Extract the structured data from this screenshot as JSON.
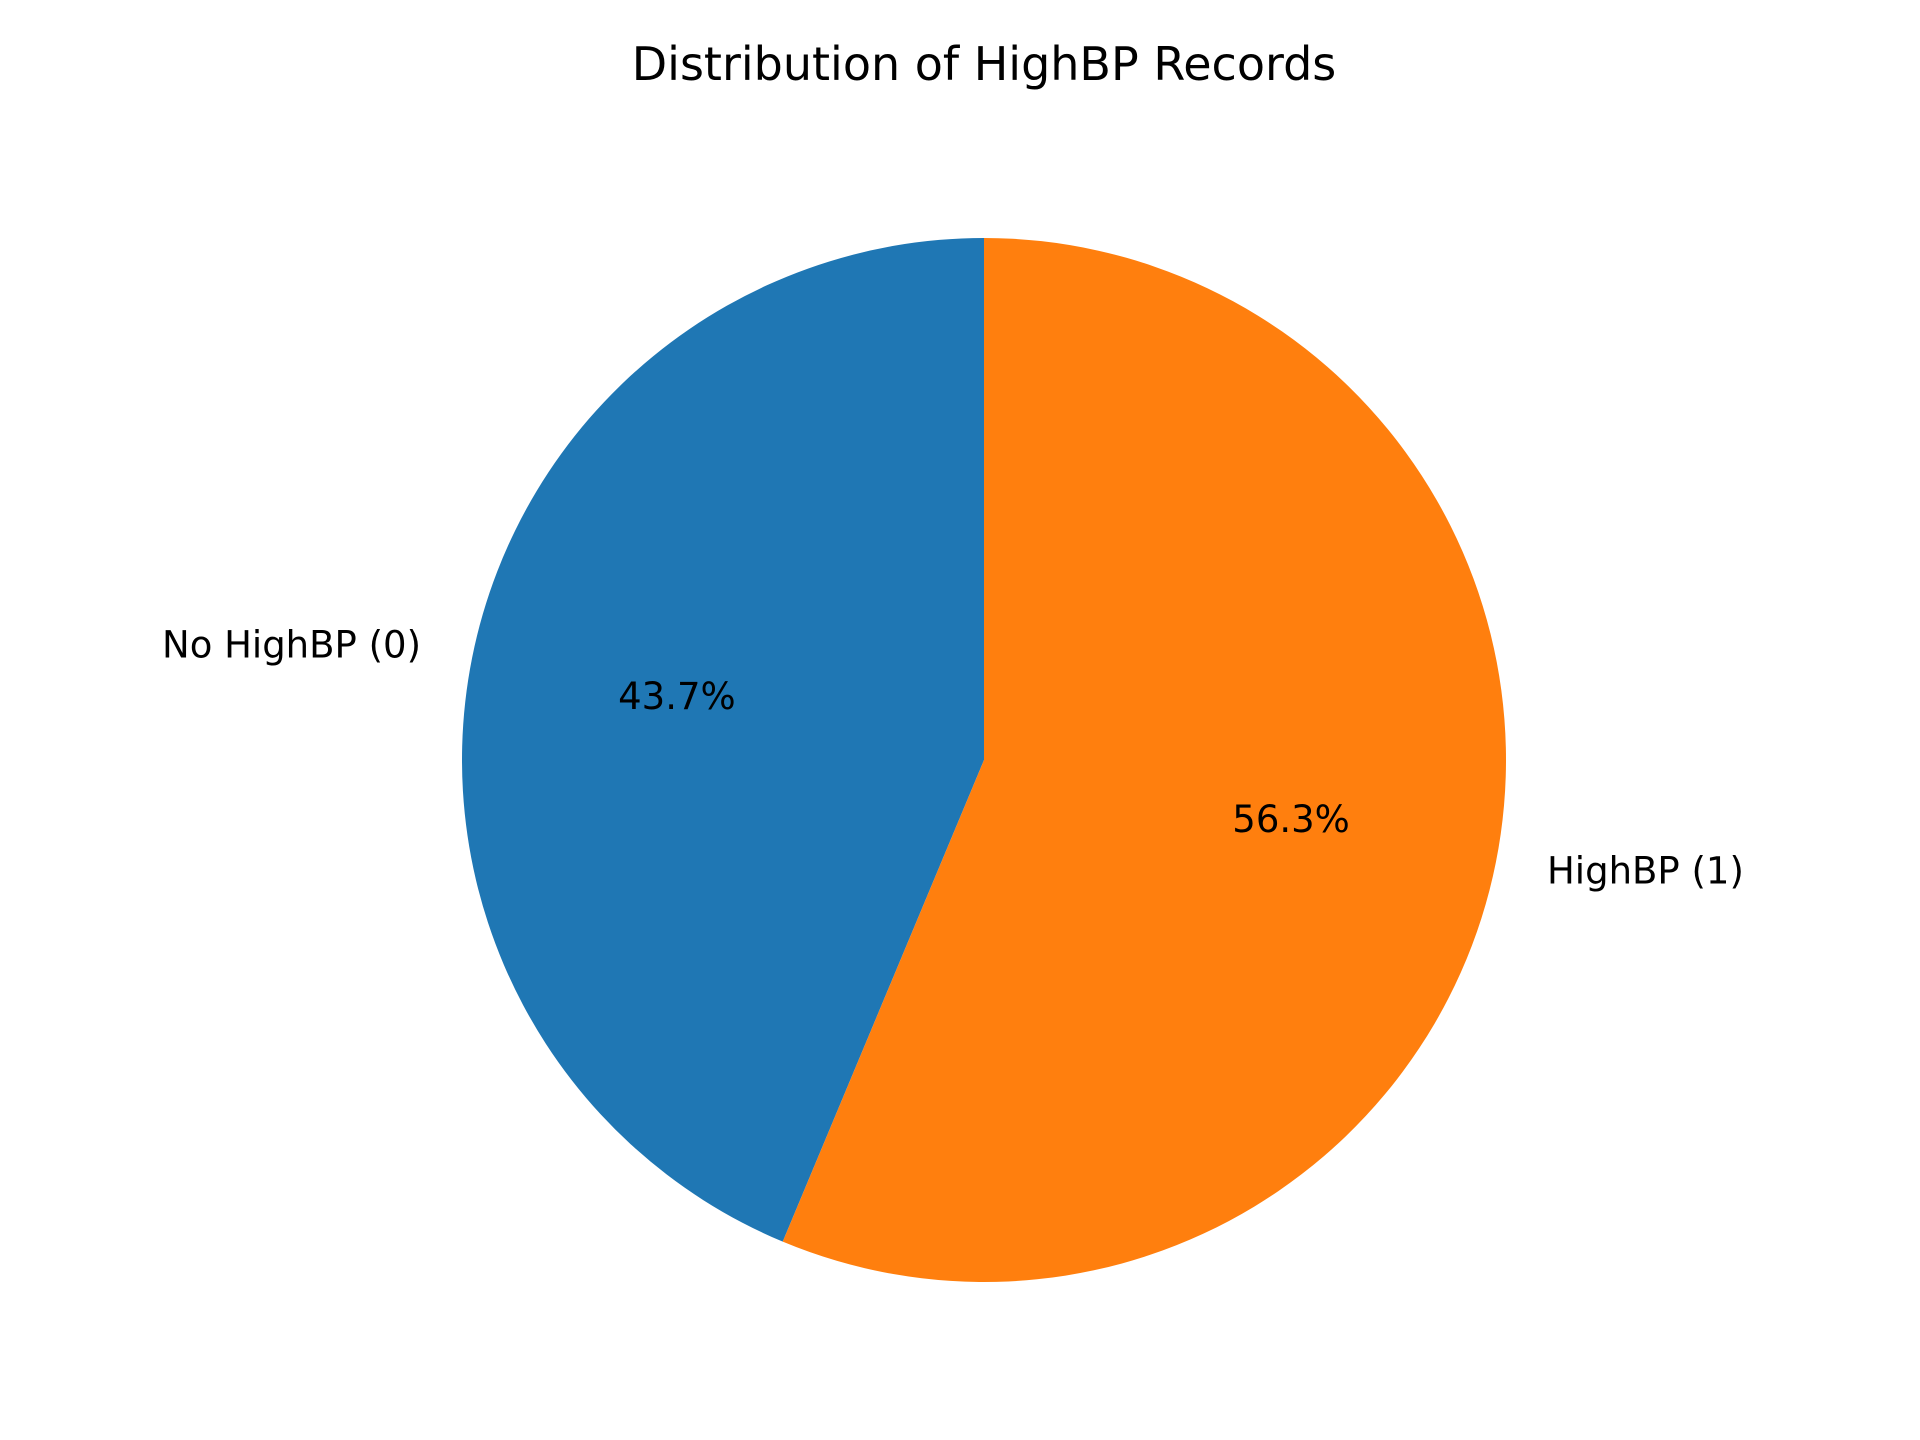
{
  "chart_data": {
    "type": "pie",
    "title": "Distribution of HighBP Records",
    "start_angle_deg": 90,
    "direction": "counterclockwise",
    "slices": [
      {
        "label": "No HighBP (0)",
        "value": 43.7,
        "pct_label": "43.7%",
        "color": "#1f77b4"
      },
      {
        "label": "HighBP (1)",
        "value": 56.3,
        "pct_label": "56.3%",
        "color": "#ff7f0e"
      }
    ],
    "legend": "none"
  }
}
